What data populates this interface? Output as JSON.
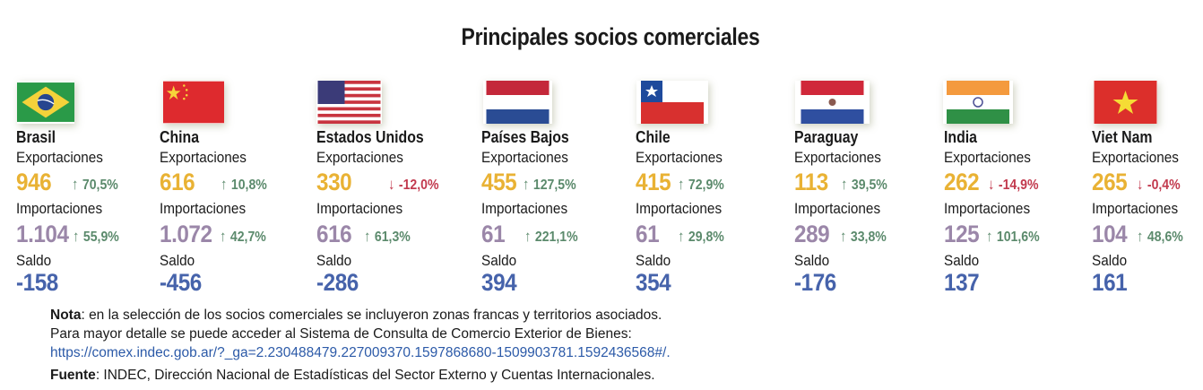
{
  "title": "Principales socios comerciales",
  "labels": {
    "exports": "Exportaciones",
    "imports": "Importaciones",
    "balance": "Saldo"
  },
  "colors": {
    "exports": "#e9b234",
    "imports": "#9b87a9",
    "balance": "#4663ab",
    "increase": "#5b8a6c",
    "decrease": "#c23a4e"
  },
  "partners": [
    {
      "name": "Brasil",
      "flag": "brazil-flag",
      "exports": "946",
      "exports_change": "70,5%",
      "exports_dir": "up",
      "imports": "1.104",
      "imports_change": "55,9%",
      "imports_dir": "up",
      "balance": "-158"
    },
    {
      "name": "China",
      "flag": "china-flag",
      "exports": "616",
      "exports_change": "10,8%",
      "exports_dir": "up",
      "imports": "1.072",
      "imports_change": "42,7%",
      "imports_dir": "up",
      "balance": "-456"
    },
    {
      "name": "Estados Unidos",
      "flag": "usa-flag",
      "exports": "330",
      "exports_change": "-12,0%",
      "exports_dir": "down",
      "imports": "616",
      "imports_change": "61,3%",
      "imports_dir": "up",
      "balance": "-286"
    },
    {
      "name": "Países Bajos",
      "flag": "netherlands-flag",
      "exports": "455",
      "exports_change": "127,5%",
      "exports_dir": "up",
      "imports": "61",
      "imports_change": "221,1%",
      "imports_dir": "up",
      "balance": "394"
    },
    {
      "name": "Chile",
      "flag": "chile-flag",
      "exports": "415",
      "exports_change": "72,9%",
      "exports_dir": "up",
      "imports": "61",
      "imports_change": "29,8%",
      "imports_dir": "up",
      "balance": "354"
    },
    {
      "name": "Paraguay",
      "flag": "paraguay-flag",
      "exports": "113",
      "exports_change": "39,5%",
      "exports_dir": "up",
      "imports": "289",
      "imports_change": "33,8%",
      "imports_dir": "up",
      "balance": "-176"
    },
    {
      "name": "India",
      "flag": "india-flag",
      "exports": "262",
      "exports_change": "-14,9%",
      "exports_dir": "down",
      "imports": "125",
      "imports_change": "101,6%",
      "imports_dir": "up",
      "balance": "137"
    },
    {
      "name": "Viet Nam",
      "flag": "vietnam-flag",
      "exports": "265",
      "exports_change": "-0,4%",
      "exports_dir": "down",
      "imports": "104",
      "imports_change": "48,6%",
      "imports_dir": "up",
      "balance": "161"
    }
  ],
  "notes": {
    "note_label": "Nota",
    "note_text": ": en la selección de los socios comerciales se incluyeron zonas francas y territorios asociados.",
    "detail_text": "Para mayor detalle se puede acceder al Sistema de Consulta de Comercio Exterior de Bienes:",
    "link": "https://comex.indec.gob.ar/?_ga=2.230488479.227009370.1597868680-1509903781.1592436568#/.",
    "source_label": "Fuente",
    "source_text": ": INDEC, Dirección Nacional de Estadísticas del Sector Externo y Cuentas Internacionales."
  }
}
